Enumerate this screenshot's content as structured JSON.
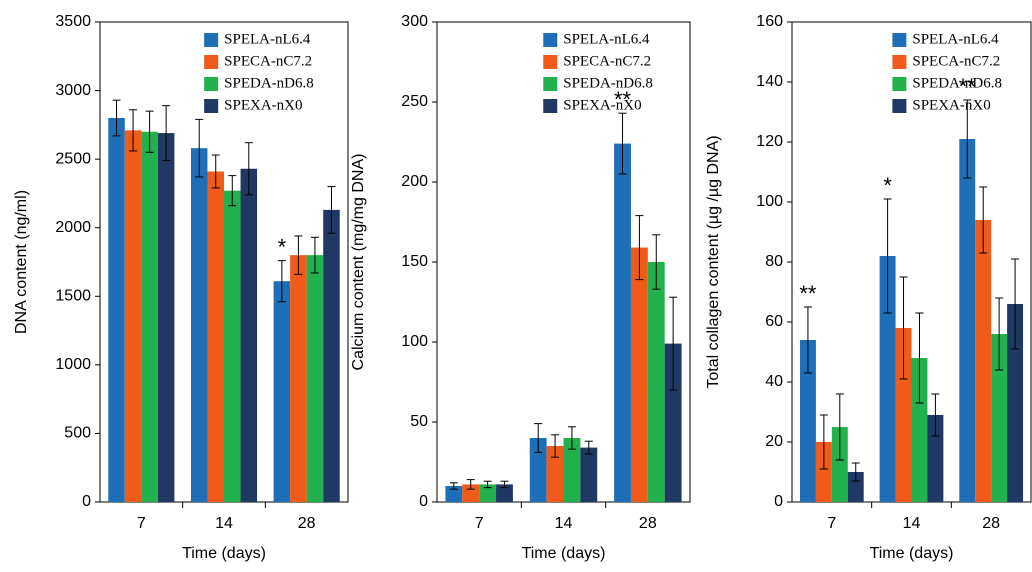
{
  "chart_data": [
    {
      "type": "bar",
      "y_label": "DNA content (ng/ml)",
      "x_label": "Time (days)",
      "categories": [
        "7",
        "14",
        "28"
      ],
      "series": [
        {
          "name": "SPELA-nL6.4",
          "color": "#1f6fb8",
          "values": [
            2800,
            2580,
            1610
          ],
          "errors": [
            130,
            210,
            150
          ]
        },
        {
          "name": "SPECA-nC7.2",
          "color": "#f05a1a",
          "values": [
            2710,
            2410,
            1800
          ],
          "errors": [
            150,
            120,
            140
          ]
        },
        {
          "name": "SPEDA-nD6.8",
          "color": "#22b14c",
          "values": [
            2700,
            2270,
            1800
          ],
          "errors": [
            150,
            110,
            130
          ]
        },
        {
          "name": "SPEXA-nX0",
          "color": "#1f3864",
          "values": [
            2690,
            2430,
            2130
          ],
          "errors": [
            200,
            190,
            170
          ]
        }
      ],
      "ylim": [
        0,
        3500
      ],
      "yticks": [
        0,
        500,
        1000,
        1500,
        2000,
        2500,
        3000,
        3500
      ],
      "annotations": [
        {
          "text": "*",
          "category": 2,
          "series": 0
        }
      ]
    },
    {
      "type": "bar",
      "y_label": "Calcium content (mg/mg  DNA)",
      "x_label": "Time (days)",
      "categories": [
        "7",
        "14",
        "28"
      ],
      "series": [
        {
          "name": "SPELA-nL6.4",
          "color": "#1f6fb8",
          "values": [
            10,
            40,
            224
          ],
          "errors": [
            2,
            9,
            19
          ]
        },
        {
          "name": "SPECA-nC7.2",
          "color": "#f05a1a",
          "values": [
            11,
            35,
            159
          ],
          "errors": [
            3,
            7,
            20
          ]
        },
        {
          "name": "SPEDA-nD6.8",
          "color": "#22b14c",
          "values": [
            11,
            40,
            150
          ],
          "errors": [
            2,
            7,
            17
          ]
        },
        {
          "name": "SPEXA-nX0",
          "color": "#1f3864",
          "values": [
            11,
            34,
            99
          ],
          "errors": [
            2,
            4,
            29
          ]
        }
      ],
      "ylim": [
        0,
        300
      ],
      "yticks": [
        0,
        50,
        100,
        150,
        200,
        250,
        300
      ],
      "annotations": [
        {
          "text": "**",
          "category": 2,
          "series": 0
        }
      ]
    },
    {
      "type": "bar",
      "y_label": "Total collagen content (µg /µg DNA)",
      "x_label": "Time (days)",
      "categories": [
        "7",
        "14",
        "28"
      ],
      "series": [
        {
          "name": "SPELA-nL6.4",
          "color": "#1f6fb8",
          "values": [
            54,
            82,
            121
          ],
          "errors": [
            11,
            19,
            13
          ]
        },
        {
          "name": "SPECA-nC7.2",
          "color": "#f05a1a",
          "values": [
            20,
            58,
            94
          ],
          "errors": [
            9,
            17,
            11
          ]
        },
        {
          "name": "SPEDA-nD6.8",
          "color": "#22b14c",
          "values": [
            25,
            48,
            56
          ],
          "errors": [
            11,
            15,
            12
          ]
        },
        {
          "name": "SPEXA-nX0",
          "color": "#1f3864",
          "values": [
            10,
            29,
            66
          ],
          "errors": [
            3,
            7,
            15
          ]
        }
      ],
      "ylim": [
        0,
        160
      ],
      "yticks": [
        0,
        20,
        40,
        60,
        80,
        100,
        120,
        140,
        160
      ],
      "annotations": [
        {
          "text": "**",
          "category": 0,
          "series": 0
        },
        {
          "text": "*",
          "category": 1,
          "series": 0
        },
        {
          "text": "**",
          "category": 2,
          "series": 0
        }
      ]
    }
  ]
}
